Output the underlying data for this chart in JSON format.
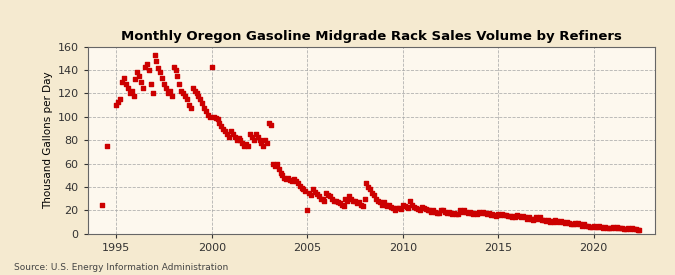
{
  "title": "Monthly Oregon Gasoline Midgrade Rack Sales Volume by Refiners",
  "ylabel": "Thousand Gallons per Day",
  "source": "Source: U.S. Energy Information Administration",
  "background_color": "#f5ead0",
  "plot_bg_color": "#fdf8ee",
  "marker_color": "#cc0000",
  "xlim": [
    1993.5,
    2023.2
  ],
  "ylim": [
    0,
    160
  ],
  "yticks": [
    0,
    20,
    40,
    60,
    80,
    100,
    120,
    140,
    160
  ],
  "xticks": [
    1995,
    2000,
    2005,
    2010,
    2015,
    2020
  ],
  "data": [
    [
      1994.25,
      25
    ],
    [
      1994.5,
      75
    ],
    [
      1995.0,
      110
    ],
    [
      1995.1,
      113
    ],
    [
      1995.2,
      115
    ],
    [
      1995.3,
      130
    ],
    [
      1995.4,
      133
    ],
    [
      1995.5,
      128
    ],
    [
      1995.6,
      125
    ],
    [
      1995.7,
      120
    ],
    [
      1995.8,
      122
    ],
    [
      1995.9,
      118
    ],
    [
      1996.0,
      132
    ],
    [
      1996.1,
      138
    ],
    [
      1996.2,
      135
    ],
    [
      1996.3,
      130
    ],
    [
      1996.4,
      125
    ],
    [
      1996.5,
      143
    ],
    [
      1996.6,
      145
    ],
    [
      1996.7,
      140
    ],
    [
      1996.8,
      128
    ],
    [
      1996.9,
      120
    ],
    [
      1997.0,
      153
    ],
    [
      1997.1,
      148
    ],
    [
      1997.2,
      142
    ],
    [
      1997.3,
      138
    ],
    [
      1997.4,
      133
    ],
    [
      1997.5,
      128
    ],
    [
      1997.6,
      125
    ],
    [
      1997.7,
      120
    ],
    [
      1997.8,
      122
    ],
    [
      1997.9,
      118
    ],
    [
      1998.0,
      143
    ],
    [
      1998.1,
      140
    ],
    [
      1998.2,
      135
    ],
    [
      1998.3,
      128
    ],
    [
      1998.4,
      122
    ],
    [
      1998.5,
      120
    ],
    [
      1998.6,
      118
    ],
    [
      1998.7,
      115
    ],
    [
      1998.8,
      110
    ],
    [
      1998.9,
      108
    ],
    [
      1999.0,
      125
    ],
    [
      1999.1,
      122
    ],
    [
      1999.2,
      120
    ],
    [
      1999.3,
      118
    ],
    [
      1999.4,
      115
    ],
    [
      1999.5,
      112
    ],
    [
      1999.6,
      108
    ],
    [
      1999.7,
      105
    ],
    [
      1999.8,
      102
    ],
    [
      1999.9,
      100
    ],
    [
      2000.0,
      143
    ],
    [
      2000.1,
      100
    ],
    [
      2000.2,
      99
    ],
    [
      2000.3,
      98
    ],
    [
      2000.4,
      95
    ],
    [
      2000.5,
      92
    ],
    [
      2000.6,
      90
    ],
    [
      2000.7,
      88
    ],
    [
      2000.8,
      85
    ],
    [
      2000.9,
      83
    ],
    [
      2001.0,
      88
    ],
    [
      2001.1,
      85
    ],
    [
      2001.2,
      83
    ],
    [
      2001.3,
      80
    ],
    [
      2001.4,
      82
    ],
    [
      2001.5,
      80
    ],
    [
      2001.6,
      78
    ],
    [
      2001.7,
      75
    ],
    [
      2001.8,
      77
    ],
    [
      2001.9,
      75
    ],
    [
      2002.0,
      85
    ],
    [
      2002.1,
      83
    ],
    [
      2002.2,
      80
    ],
    [
      2002.3,
      85
    ],
    [
      2002.4,
      83
    ],
    [
      2002.5,
      80
    ],
    [
      2002.6,
      78
    ],
    [
      2002.7,
      75
    ],
    [
      2002.8,
      80
    ],
    [
      2002.9,
      78
    ],
    [
      2003.0,
      95
    ],
    [
      2003.1,
      93
    ],
    [
      2003.2,
      60
    ],
    [
      2003.3,
      58
    ],
    [
      2003.4,
      60
    ],
    [
      2003.5,
      55
    ],
    [
      2003.6,
      52
    ],
    [
      2003.7,
      50
    ],
    [
      2003.8,
      48
    ],
    [
      2003.9,
      47
    ],
    [
      2004.0,
      48
    ],
    [
      2004.1,
      46
    ],
    [
      2004.2,
      45
    ],
    [
      2004.3,
      47
    ],
    [
      2004.4,
      45
    ],
    [
      2004.5,
      43
    ],
    [
      2004.6,
      41
    ],
    [
      2004.7,
      39
    ],
    [
      2004.8,
      38
    ],
    [
      2004.9,
      37
    ],
    [
      2005.0,
      20
    ],
    [
      2005.1,
      35
    ],
    [
      2005.2,
      33
    ],
    [
      2005.3,
      38
    ],
    [
      2005.4,
      36
    ],
    [
      2005.5,
      34
    ],
    [
      2005.6,
      32
    ],
    [
      2005.7,
      30
    ],
    [
      2005.8,
      30
    ],
    [
      2005.9,
      28
    ],
    [
      2006.0,
      35
    ],
    [
      2006.1,
      33
    ],
    [
      2006.2,
      32
    ],
    [
      2006.3,
      30
    ],
    [
      2006.4,
      28
    ],
    [
      2006.5,
      28
    ],
    [
      2006.6,
      27
    ],
    [
      2006.7,
      26
    ],
    [
      2006.8,
      25
    ],
    [
      2006.9,
      24
    ],
    [
      2007.0,
      30
    ],
    [
      2007.1,
      28
    ],
    [
      2007.2,
      32
    ],
    [
      2007.3,
      30
    ],
    [
      2007.4,
      28
    ],
    [
      2007.5,
      28
    ],
    [
      2007.6,
      26
    ],
    [
      2007.7,
      27
    ],
    [
      2007.8,
      25
    ],
    [
      2007.9,
      24
    ],
    [
      2008.0,
      30
    ],
    [
      2008.1,
      43
    ],
    [
      2008.2,
      40
    ],
    [
      2008.3,
      38
    ],
    [
      2008.4,
      35
    ],
    [
      2008.5,
      33
    ],
    [
      2008.6,
      30
    ],
    [
      2008.7,
      28
    ],
    [
      2008.8,
      27
    ],
    [
      2008.9,
      25
    ],
    [
      2009.0,
      27
    ],
    [
      2009.1,
      25
    ],
    [
      2009.2,
      24
    ],
    [
      2009.3,
      25
    ],
    [
      2009.4,
      23
    ],
    [
      2009.5,
      22
    ],
    [
      2009.6,
      20
    ],
    [
      2009.7,
      22
    ],
    [
      2009.8,
      22
    ],
    [
      2009.9,
      21
    ],
    [
      2010.0,
      25
    ],
    [
      2010.1,
      24
    ],
    [
      2010.2,
      23
    ],
    [
      2010.3,
      22
    ],
    [
      2010.4,
      28
    ],
    [
      2010.5,
      25
    ],
    [
      2010.6,
      23
    ],
    [
      2010.7,
      22
    ],
    [
      2010.8,
      21
    ],
    [
      2010.9,
      20
    ],
    [
      2011.0,
      23
    ],
    [
      2011.1,
      22
    ],
    [
      2011.2,
      21
    ],
    [
      2011.3,
      20
    ],
    [
      2011.4,
      20
    ],
    [
      2011.5,
      19
    ],
    [
      2011.6,
      20
    ],
    [
      2011.7,
      19
    ],
    [
      2011.8,
      18
    ],
    [
      2011.9,
      18
    ],
    [
      2012.0,
      20
    ],
    [
      2012.1,
      20
    ],
    [
      2012.2,
      19
    ],
    [
      2012.3,
      18
    ],
    [
      2012.4,
      19
    ],
    [
      2012.5,
      18
    ],
    [
      2012.6,
      17
    ],
    [
      2012.7,
      18
    ],
    [
      2012.8,
      17
    ],
    [
      2012.9,
      17
    ],
    [
      2013.0,
      20
    ],
    [
      2013.1,
      19
    ],
    [
      2013.2,
      20
    ],
    [
      2013.3,
      19
    ],
    [
      2013.4,
      18
    ],
    [
      2013.5,
      19
    ],
    [
      2013.6,
      18
    ],
    [
      2013.7,
      17
    ],
    [
      2013.8,
      18
    ],
    [
      2013.9,
      17
    ],
    [
      2014.0,
      19
    ],
    [
      2014.1,
      18
    ],
    [
      2014.2,
      19
    ],
    [
      2014.3,
      18
    ],
    [
      2014.4,
      17
    ],
    [
      2014.5,
      18
    ],
    [
      2014.6,
      16
    ],
    [
      2014.7,
      17
    ],
    [
      2014.8,
      16
    ],
    [
      2014.9,
      15
    ],
    [
      2015.0,
      17
    ],
    [
      2015.1,
      16
    ],
    [
      2015.2,
      17
    ],
    [
      2015.3,
      16
    ],
    [
      2015.4,
      16
    ],
    [
      2015.5,
      15
    ],
    [
      2015.6,
      15
    ],
    [
      2015.7,
      14
    ],
    [
      2015.8,
      15
    ],
    [
      2015.9,
      14
    ],
    [
      2016.0,
      16
    ],
    [
      2016.1,
      15
    ],
    [
      2016.2,
      14
    ],
    [
      2016.3,
      15
    ],
    [
      2016.4,
      14
    ],
    [
      2016.5,
      13
    ],
    [
      2016.6,
      14
    ],
    [
      2016.7,
      13
    ],
    [
      2016.8,
      12
    ],
    [
      2016.9,
      13
    ],
    [
      2017.0,
      14
    ],
    [
      2017.1,
      13
    ],
    [
      2017.2,
      14
    ],
    [
      2017.3,
      12
    ],
    [
      2017.4,
      12
    ],
    [
      2017.5,
      11
    ],
    [
      2017.6,
      12
    ],
    [
      2017.7,
      10
    ],
    [
      2017.8,
      11
    ],
    [
      2017.9,
      10
    ],
    [
      2018.0,
      12
    ],
    [
      2018.1,
      11
    ],
    [
      2018.2,
      10
    ],
    [
      2018.3,
      11
    ],
    [
      2018.4,
      10
    ],
    [
      2018.5,
      9
    ],
    [
      2018.6,
      10
    ],
    [
      2018.7,
      9
    ],
    [
      2018.8,
      8
    ],
    [
      2018.9,
      8
    ],
    [
      2019.0,
      9
    ],
    [
      2019.1,
      8
    ],
    [
      2019.2,
      9
    ],
    [
      2019.3,
      8
    ],
    [
      2019.4,
      7
    ],
    [
      2019.5,
      8
    ],
    [
      2019.6,
      7
    ],
    [
      2019.7,
      7
    ],
    [
      2019.8,
      6
    ],
    [
      2019.9,
      6
    ],
    [
      2020.0,
      7
    ],
    [
      2020.1,
      6
    ],
    [
      2020.2,
      6
    ],
    [
      2020.3,
      7
    ],
    [
      2020.4,
      6
    ],
    [
      2020.5,
      5
    ],
    [
      2020.6,
      6
    ],
    [
      2020.7,
      5
    ],
    [
      2020.8,
      5
    ],
    [
      2020.9,
      5
    ],
    [
      2021.0,
      6
    ],
    [
      2021.1,
      5
    ],
    [
      2021.2,
      6
    ],
    [
      2021.3,
      5
    ],
    [
      2021.4,
      5
    ],
    [
      2021.5,
      5
    ],
    [
      2021.6,
      4
    ],
    [
      2021.7,
      4
    ],
    [
      2021.8,
      5
    ],
    [
      2021.9,
      4
    ],
    [
      2022.0,
      5
    ],
    [
      2022.1,
      4
    ],
    [
      2022.2,
      4
    ],
    [
      2022.3,
      3
    ],
    [
      2022.4,
      3
    ]
  ]
}
